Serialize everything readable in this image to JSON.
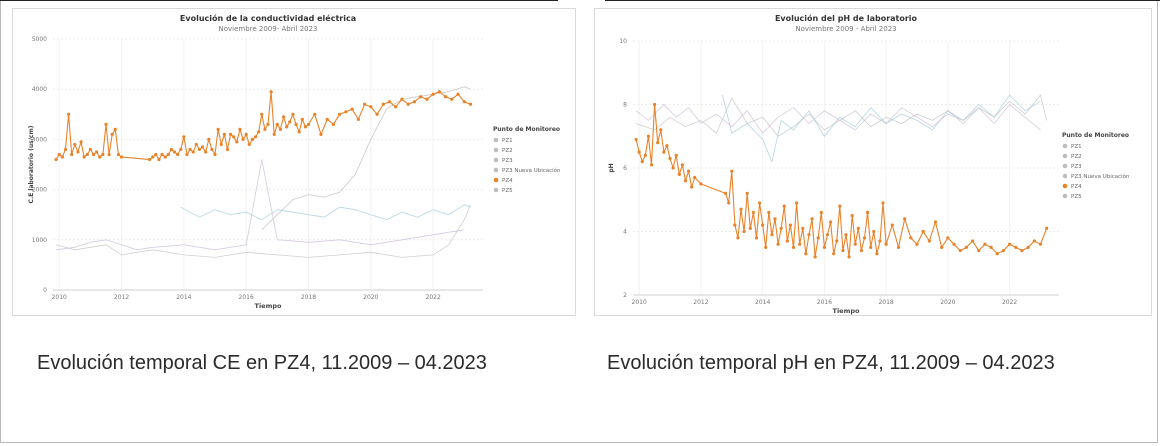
{
  "captions": {
    "left": "Evolución temporal CE en PZ4, 11.2009 – 04.2023",
    "right": "Evolución temporal pH en PZ4, 11.2009 – 04.2023"
  },
  "colors": {
    "PZ1": "#c0c0c0",
    "PZ2": "#b8b8b8",
    "PZ3": "#b0b0b0",
    "PZ3_nueva": "#9ec8d8",
    "PZ4": "#e8832a",
    "PZ5": "#c8b8d8",
    "pink": "#f0a8c0"
  },
  "chart_data": [
    {
      "type": "line",
      "title": "Evolución de la conductividad eléctrica",
      "subtitle": "Noviembre 2009- Abril 2023",
      "xlabel": "Tiempo",
      "ylabel": "C.E laboratorio (us/cm)",
      "xlim": [
        2009.8,
        2023.6
      ],
      "ylim": [
        0,
        5000
      ],
      "xticks": [
        2010,
        2012,
        2014,
        2016,
        2018,
        2020,
        2022
      ],
      "yticks": [
        0,
        1000,
        2000,
        3000,
        4000,
        5000
      ],
      "grid": true,
      "legend_title": "Punto de Monitoreo",
      "legend": [
        "PZ1",
        "PZ2",
        "PZ3",
        "PZ3 Nueva Ubicación",
        "PZ4",
        "PZ5"
      ],
      "legend_position": "right",
      "series": [
        {
          "name": "PZ4",
          "x": [
            2009.9,
            2010.0,
            2010.1,
            2010.2,
            2010.3,
            2010.4,
            2010.5,
            2010.6,
            2010.7,
            2010.8,
            2010.9,
            2011.0,
            2011.1,
            2011.2,
            2011.3,
            2011.4,
            2011.5,
            2011.6,
            2011.7,
            2011.8,
            2011.9,
            2012.0,
            2012.9,
            2013.0,
            2013.1,
            2013.2,
            2013.3,
            2013.4,
            2013.5,
            2013.6,
            2013.7,
            2013.8,
            2013.9,
            2014.0,
            2014.1,
            2014.2,
            2014.3,
            2014.4,
            2014.5,
            2014.6,
            2014.7,
            2014.8,
            2014.9,
            2015.0,
            2015.1,
            2015.2,
            2015.3,
            2015.4,
            2015.5,
            2015.6,
            2015.7,
            2015.8,
            2015.9,
            2016.0,
            2016.1,
            2016.2,
            2016.3,
            2016.4,
            2016.5,
            2016.6,
            2016.7,
            2016.8,
            2016.9,
            2017.0,
            2017.1,
            2017.2,
            2017.3,
            2017.4,
            2017.5,
            2017.6,
            2017.7,
            2017.8,
            2017.9,
            2018.0,
            2018.2,
            2018.4,
            2018.6,
            2018.8,
            2019.0,
            2019.2,
            2019.4,
            2019.6,
            2019.8,
            2020.0,
            2020.2,
            2020.4,
            2020.6,
            2020.8,
            2021.0,
            2021.2,
            2021.4,
            2021.6,
            2021.8,
            2022.0,
            2022.2,
            2022.4,
            2022.6,
            2022.8,
            2023.0,
            2023.2
          ],
          "values": [
            2600,
            2700,
            2650,
            2800,
            3500,
            2700,
            2900,
            2750,
            2950,
            2650,
            2700,
            2800,
            2700,
            2750,
            2650,
            2700,
            3300,
            2700,
            3100,
            3200,
            2700,
            2650,
            2600,
            2650,
            2700,
            2600,
            2700,
            2650,
            2700,
            2800,
            2750,
            2700,
            2800,
            3050,
            2700,
            2800,
            2750,
            2900,
            2800,
            2850,
            2750,
            3000,
            2800,
            2700,
            3200,
            2900,
            3100,
            2800,
            3100,
            3050,
            2950,
            3200,
            3000,
            3100,
            2900,
            3000,
            3050,
            3150,
            3500,
            3200,
            3300,
            3950,
            3100,
            3300,
            3200,
            3450,
            3250,
            3350,
            3500,
            3300,
            3150,
            3400,
            3250,
            3300,
            3500,
            3100,
            3400,
            3300,
            3500,
            3550,
            3600,
            3400,
            3700,
            3650,
            3500,
            3700,
            3750,
            3650,
            3800,
            3700,
            3750,
            3850,
            3800,
            3900,
            3950,
            3850,
            3800,
            3900,
            3750,
            3700
          ]
        },
        {
          "name": "PZ3 Nueva Ubicación",
          "x": [
            2013.9,
            2014.5,
            2015.0,
            2015.5,
            2016.0,
            2016.5,
            2017.0,
            2017.5,
            2018.0,
            2018.5,
            2019.0,
            2019.5,
            2020.0,
            2020.5,
            2021.0,
            2021.5,
            2022.0,
            2022.5,
            2023.0,
            2023.2
          ],
          "values": [
            1650,
            1450,
            1600,
            1500,
            1550,
            1400,
            1600,
            1550,
            1500,
            1450,
            1650,
            1600,
            1500,
            1400,
            1550,
            1450,
            1600,
            1500,
            1700,
            1650
          ]
        },
        {
          "name": "PZ1",
          "x": [
            2009.9,
            2010.5,
            2011.0,
            2011.5,
            2012.0,
            2012.5,
            2013.0,
            2014.0,
            2015.0,
            2016.0,
            2017.0,
            2018.0,
            2019.0,
            2020.0,
            2021.0,
            2022.0,
            2022.5,
            2023.0,
            2023.2
          ],
          "values": [
            900,
            800,
            850,
            900,
            700,
            750,
            800,
            700,
            650,
            750,
            700,
            650,
            700,
            750,
            650,
            700,
            900,
            1400,
            1700
          ]
        },
        {
          "name": "PZ2",
          "x": [
            2016.5,
            2017.0,
            2017.5,
            2018.0,
            2018.5,
            2019.0,
            2019.5,
            2020.0,
            2020.5,
            2021.0,
            2021.5,
            2022.0,
            2022.5,
            2023.0,
            2023.2
          ],
          "values": [
            1200,
            1500,
            1800,
            1900,
            1850,
            1950,
            2300,
            3000,
            3600,
            3800,
            3850,
            3900,
            3950,
            4050,
            4000
          ]
        },
        {
          "name": "PZ5",
          "x": [
            2009.9,
            2010.5,
            2011.0,
            2011.5,
            2012.0,
            2012.5,
            2013.0,
            2014.0,
            2015.0,
            2016.0,
            2016.5,
            2017.0,
            2018.0,
            2019.0,
            2020.0,
            2021.0,
            2022.0,
            2023.0
          ],
          "values": [
            800,
            850,
            950,
            1000,
            900,
            800,
            850,
            900,
            800,
            900,
            2600,
            1000,
            950,
            1000,
            900,
            1000,
            1100,
            1200
          ]
        }
      ]
    },
    {
      "type": "line",
      "title": "Evolución del pH de laboratorio",
      "subtitle": "Noviembre 2009 - Abril 2023",
      "xlabel": "Tiempo",
      "ylabel": "pH",
      "xlim": [
        2009.8,
        2023.6
      ],
      "ylim": [
        2,
        10
      ],
      "xticks": [
        2010,
        2012,
        2014,
        2016,
        2018,
        2020,
        2022
      ],
      "yticks": [
        2,
        4,
        6,
        8,
        10
      ],
      "grid": true,
      "legend_title": "Punto de Monitoreo",
      "legend": [
        "PZ1",
        "PZ2",
        "PZ3",
        "PZ3 Nueva Ubicación",
        "PZ4",
        "PZ5"
      ],
      "legend_position": "right",
      "series": [
        {
          "name": "PZ4",
          "x": [
            2009.9,
            2010.0,
            2010.1,
            2010.2,
            2010.3,
            2010.4,
            2010.5,
            2010.6,
            2010.7,
            2010.8,
            2010.9,
            2011.0,
            2011.1,
            2011.2,
            2011.3,
            2011.4,
            2011.5,
            2011.6,
            2011.7,
            2011.8,
            2012.0,
            2012.8,
            2012.9,
            2013.0,
            2013.1,
            2013.2,
            2013.3,
            2013.4,
            2013.5,
            2013.6,
            2013.7,
            2013.8,
            2013.9,
            2014.0,
            2014.1,
            2014.2,
            2014.3,
            2014.4,
            2014.5,
            2014.6,
            2014.7,
            2014.8,
            2014.9,
            2015.0,
            2015.1,
            2015.2,
            2015.3,
            2015.4,
            2015.5,
            2015.6,
            2015.7,
            2015.8,
            2015.9,
            2016.0,
            2016.1,
            2016.2,
            2016.3,
            2016.4,
            2016.5,
            2016.6,
            2016.7,
            2016.8,
            2016.9,
            2017.0,
            2017.1,
            2017.2,
            2017.3,
            2017.4,
            2017.5,
            2017.6,
            2017.7,
            2017.8,
            2017.9,
            2018.0,
            2018.2,
            2018.4,
            2018.6,
            2018.8,
            2019.0,
            2019.2,
            2019.4,
            2019.6,
            2019.8,
            2020.0,
            2020.2,
            2020.4,
            2020.6,
            2020.8,
            2021.0,
            2021.2,
            2021.4,
            2021.6,
            2021.8,
            2022.0,
            2022.2,
            2022.4,
            2022.6,
            2022.8,
            2023.0,
            2023.2
          ],
          "values": [
            6.9,
            6.5,
            6.2,
            6.4,
            7.0,
            6.1,
            8.0,
            6.8,
            7.2,
            6.5,
            6.7,
            6.3,
            6.0,
            6.4,
            5.8,
            6.1,
            5.6,
            5.9,
            5.4,
            5.7,
            5.5,
            5.2,
            4.9,
            5.9,
            4.2,
            3.8,
            4.7,
            4.0,
            5.2,
            4.1,
            4.6,
            3.8,
            4.9,
            4.2,
            3.5,
            4.6,
            3.9,
            4.4,
            3.6,
            4.1,
            4.8,
            3.7,
            4.2,
            3.5,
            4.9,
            3.6,
            4.1,
            3.3,
            3.9,
            4.4,
            3.2,
            3.8,
            4.6,
            3.5,
            3.9,
            4.3,
            3.3,
            3.7,
            4.8,
            3.4,
            3.9,
            3.2,
            4.5,
            3.6,
            4.1,
            3.4,
            3.8,
            4.6,
            3.5,
            4.0,
            3.3,
            3.7,
            4.9,
            3.6,
            4.2,
            3.5,
            4.4,
            3.8,
            3.6,
            4.0,
            3.7,
            4.3,
            3.5,
            3.8,
            3.6,
            3.4,
            3.5,
            3.7,
            3.4,
            3.6,
            3.5,
            3.3,
            3.4,
            3.6,
            3.5,
            3.4,
            3.5,
            3.7,
            3.6,
            4.1
          ]
        },
        {
          "name": "PZ1",
          "x": [
            2009.9,
            2010.5,
            2011.0,
            2011.5,
            2012.0,
            2012.5,
            2013.0,
            2013.5,
            2014.0,
            2014.5,
            2015.0,
            2015.5,
            2016.0,
            2016.5,
            2017.0,
            2017.5,
            2018.0,
            2018.5,
            2019.0,
            2019.5,
            2020.0,
            2020.5,
            2021.0,
            2021.5,
            2022.0,
            2022.5,
            2023.0,
            2023.2
          ],
          "values": [
            7.4,
            7.2,
            7.6,
            7.3,
            7.5,
            7.1,
            8.2,
            7.4,
            7.6,
            7.0,
            7.3,
            7.7,
            7.2,
            7.5,
            7.8,
            7.3,
            7.6,
            7.4,
            7.7,
            7.5,
            7.8,
            7.4,
            7.9,
            7.6,
            8.1,
            7.7,
            8.3,
            7.5
          ]
        },
        {
          "name": "PZ3 Nueva Ubicación",
          "x": [
            2012.7,
            2013.0,
            2013.5,
            2014.0,
            2014.3,
            2014.6,
            2015.0,
            2015.5,
            2016.0,
            2016.5,
            2017.0,
            2017.5,
            2018.0,
            2018.5,
            2019.0,
            2019.5,
            2020.0,
            2020.5,
            2021.0,
            2021.5,
            2022.0,
            2022.5,
            2023.0
          ],
          "values": [
            8.3,
            7.1,
            7.4,
            6.9,
            6.2,
            7.5,
            7.2,
            7.8,
            7.0,
            7.6,
            7.3,
            7.9,
            7.4,
            7.7,
            7.5,
            7.2,
            7.8,
            7.5,
            8.0,
            7.6,
            8.3,
            7.8,
            8.1
          ]
        },
        {
          "name": "PZ5",
          "x": [
            2009.9,
            2010.3,
            2010.8,
            2011.2,
            2011.6,
            2012.0,
            2012.5,
            2013.0,
            2013.5,
            2014.0,
            2014.5,
            2015.0,
            2015.5,
            2016.0,
            2016.5,
            2017.0,
            2017.5,
            2018.0,
            2018.5,
            2019.0,
            2019.5,
            2020.0,
            2020.5,
            2021.0,
            2021.5,
            2022.0,
            2022.5,
            2023.0
          ],
          "values": [
            7.8,
            7.5,
            8.0,
            7.6,
            7.9,
            7.4,
            7.7,
            7.3,
            7.8,
            7.1,
            7.6,
            7.9,
            7.4,
            7.8,
            7.5,
            7.2,
            7.7,
            7.4,
            7.9,
            7.6,
            7.3,
            7.7,
            7.5,
            7.9,
            7.4,
            8.0,
            7.6,
            7.2
          ]
        }
      ]
    }
  ]
}
